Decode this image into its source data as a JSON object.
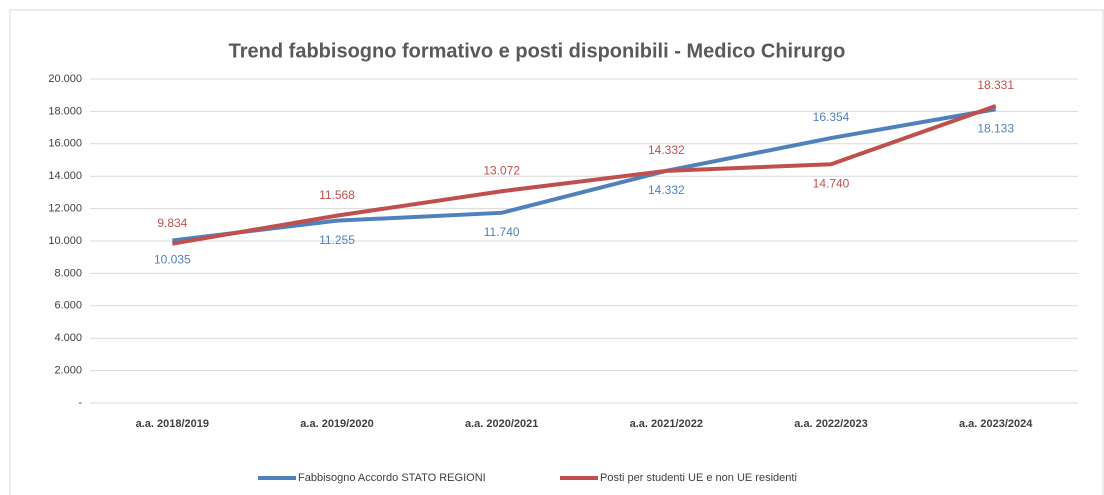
{
  "chart_data": {
    "type": "line",
    "title": "Trend fabbisogno  formativo e posti disponibili  - Medico Chirurgo",
    "categories": [
      "a.a. 2018/2019",
      "a.a. 2019/2020",
      "a.a. 2020/2021",
      "a.a. 2021/2022",
      "a.a. 2022/2023",
      "a.a. 2023/2024"
    ],
    "series": [
      {
        "name": "Fabbisogno Accordo STATO REGIONI",
        "color": "#4f81bd",
        "values": [
          10035,
          11255,
          11740,
          14332,
          16354,
          18133
        ],
        "value_labels": [
          "10.035",
          "11.255",
          "11.740",
          "14.332",
          "16.354",
          "18.133"
        ]
      },
      {
        "name": "Posti per studenti UE e non UE residenti",
        "color": "#c0504d",
        "values": [
          9834,
          11568,
          13072,
          14332,
          14740,
          18331
        ],
        "value_labels": [
          "9.834",
          "11.568",
          "13.072",
          "14.332",
          "14.740",
          "18.331"
        ]
      }
    ],
    "ylim": [
      0,
      20000
    ],
    "yticks": [
      {
        "value": 0,
        "label": "-"
      },
      {
        "value": 2000,
        "label": "2.000"
      },
      {
        "value": 4000,
        "label": "4.000"
      },
      {
        "value": 6000,
        "label": "6.000"
      },
      {
        "value": 8000,
        "label": "8.000"
      },
      {
        "value": 10000,
        "label": "10.000"
      },
      {
        "value": 12000,
        "label": "12.000"
      },
      {
        "value": 14000,
        "label": "14.000"
      },
      {
        "value": 16000,
        "label": "16.000"
      },
      {
        "value": 18000,
        "label": "18.000"
      },
      {
        "value": 20000,
        "label": "20.000"
      }
    ],
    "grid": true,
    "legend": "bottom"
  }
}
